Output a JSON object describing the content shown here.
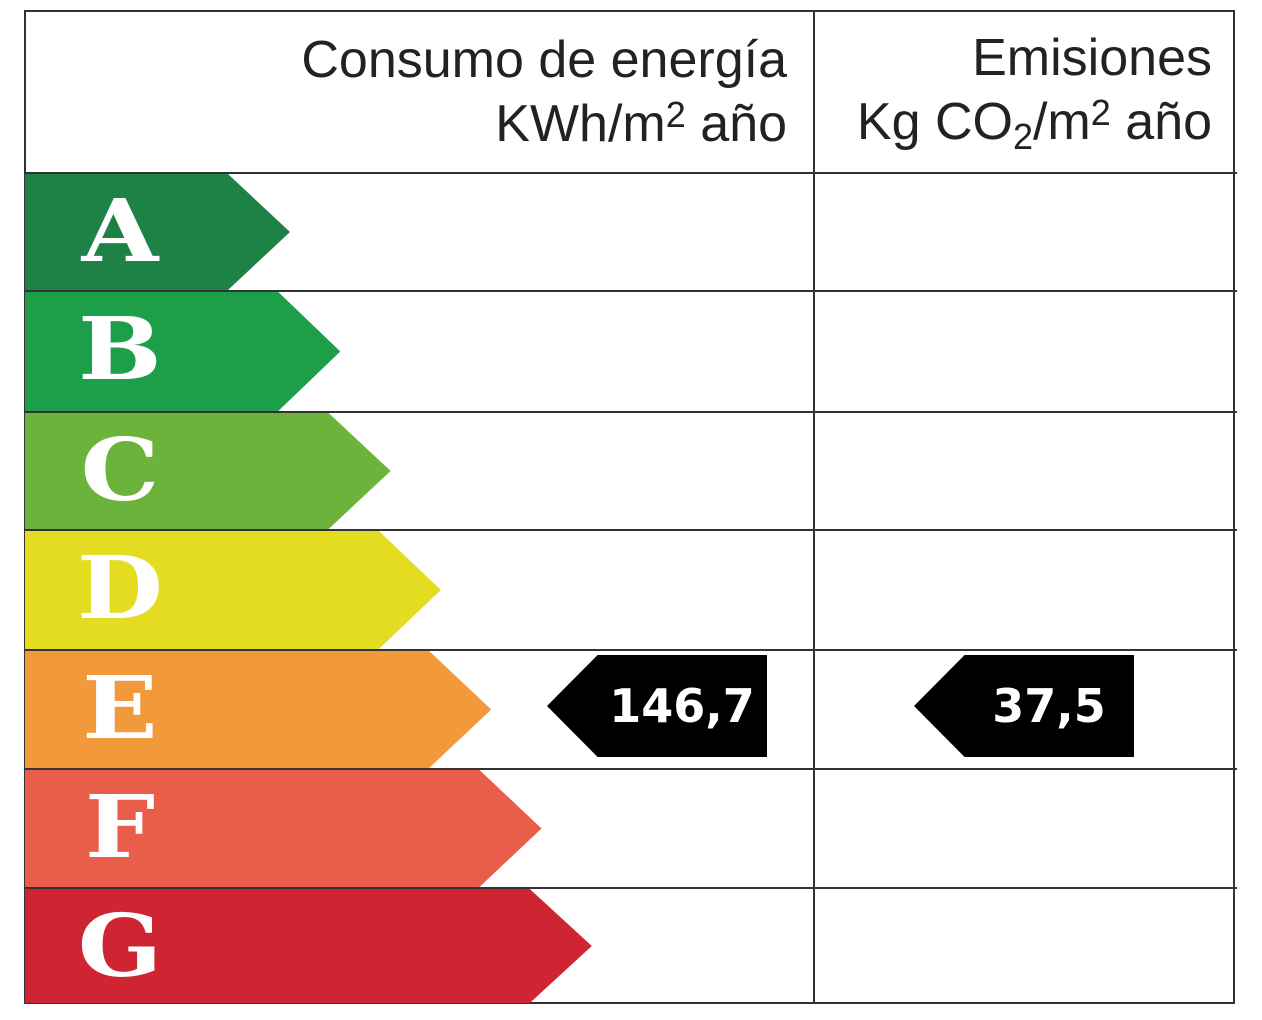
{
  "header": {
    "energy": {
      "title": "Consumo de energía",
      "unit_main": "KWh/m",
      "unit_sup": "2",
      "unit_tail": " año"
    },
    "emissions": {
      "title": "Emisiones",
      "unit_a": "Kg CO",
      "unit_sub": "2",
      "unit_b": "/m",
      "unit_sup": "2",
      "unit_tail": " año"
    }
  },
  "ratings": [
    {
      "letter": "A",
      "color": "#1e8145"
    },
    {
      "letter": "B",
      "color": "#1d9e48"
    },
    {
      "letter": "C",
      "color": "#6bb33a"
    },
    {
      "letter": "D",
      "color": "#e3dc21"
    },
    {
      "letter": "E",
      "color": "#f29a3b"
    },
    {
      "letter": "F",
      "color": "#e95d4b"
    },
    {
      "letter": "G",
      "color": "#cf2533"
    }
  ],
  "energy_result": {
    "rating": "E",
    "value": "146,7"
  },
  "emissions_result": {
    "rating": "E",
    "value": "37,5"
  }
}
